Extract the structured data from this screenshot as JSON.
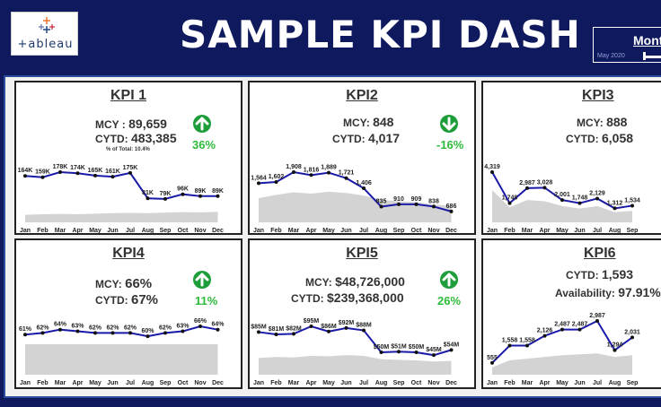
{
  "header": {
    "logo_text": "+ableau",
    "title": "SAMPLE KPI DASH",
    "month_label": "Mont",
    "month_date": "May 2020"
  },
  "months": [
    "Jan",
    "Feb",
    "Mar",
    "Apr",
    "May",
    "Jun",
    "Jul",
    "Aug",
    "Sep",
    "Oct",
    "Nov",
    "Dec"
  ],
  "colors": {
    "navy": "#0f1a5e",
    "line": "#1a1aa8",
    "area": "#d3d3d3",
    "green": "#1e9e3a",
    "green_text": "#2dbb3a"
  },
  "kpis": [
    {
      "title": "KPI 1",
      "mcy_label": "MCY : ",
      "mcy_value": "89,659",
      "cytd_label": "CYTD: ",
      "cytd_value": "483,385",
      "note": "% of Total: 10.4%",
      "pct": "36%",
      "direction": "up",
      "values": [
        164,
        159,
        178,
        174,
        165,
        161,
        175,
        81,
        79,
        96,
        89,
        89
      ],
      "labels": [
        "164K",
        "159K",
        "178K",
        "174K",
        "165K",
        "161K",
        "175K",
        "81K",
        "79K",
        "96K",
        "89K",
        "89K"
      ],
      "area": [
        20,
        22,
        23,
        22,
        24,
        26,
        27,
        26,
        28,
        30,
        29,
        31
      ]
    },
    {
      "title": "KPI2",
      "mcy_label": "MCY: ",
      "mcy_value": "848",
      "cytd_label": "CYTD: ",
      "cytd_value": "4,017",
      "pct": "-16%",
      "direction": "down",
      "values": [
        1564,
        1602,
        1908,
        1816,
        1889,
        1721,
        1406,
        835,
        910,
        909,
        838,
        686
      ],
      "labels": [
        "1,564",
        "1,602",
        "1,908",
        "1,816",
        "1,889",
        "1,721",
        "1,406",
        "835",
        "910",
        "909",
        "838",
        "686"
      ],
      "area": [
        1100,
        1200,
        1280,
        1240,
        1300,
        1260,
        1180,
        1050,
        1000,
        980,
        900,
        860
      ]
    },
    {
      "title": "KPI3",
      "mcy_label": "MCY: ",
      "mcy_value": "888",
      "cytd_label": "CYTD: ",
      "cytd_value": "6,058",
      "values": [
        4319,
        1748,
        2987,
        3028,
        2001,
        1748,
        2129,
        1312,
        1534
      ],
      "labels": [
        "4,319",
        "1,748",
        "2,987",
        "3,028",
        "2,001",
        "1,748",
        "2,129",
        "1,312",
        "1,534"
      ],
      "area": [
        3200,
        1400,
        2000,
        1900,
        1500,
        1300,
        1500,
        1000,
        1100
      ]
    },
    {
      "title": "KPI4",
      "mcy_label": "MCY: ",
      "mcy_value": "66%",
      "cytd_label": "CYTD: ",
      "cytd_value": "67%",
      "pct": "11%",
      "direction": "up",
      "values": [
        61,
        62,
        64,
        63,
        62,
        62,
        62,
        60,
        62,
        63,
        66,
        64
      ],
      "labels": [
        "61%",
        "62%",
        "64%",
        "63%",
        "62%",
        "62%",
        "62%",
        "60%",
        "62%",
        "63%",
        "66%",
        "64%"
      ],
      "area": [
        60,
        60,
        60,
        60,
        60,
        60,
        60,
        60,
        60,
        60,
        60,
        60
      ]
    },
    {
      "title": "KPI5",
      "mcy_label": "MCY: ",
      "mcy_value": "$48,726,000",
      "cytd_label": "CYTD: ",
      "cytd_value": "$239,368,000",
      "pct": "26%",
      "direction": "up",
      "values": [
        85,
        81,
        82,
        95,
        86,
        92,
        88,
        50,
        51,
        50,
        45,
        54
      ],
      "labels": [
        "$85M",
        "$81M",
        "$82M",
        "$95M",
        "$86M",
        "$92M",
        "$88M",
        "$50M",
        "$51M",
        "$50M",
        "$45M",
        "$54M"
      ],
      "area": [
        40,
        42,
        41,
        44,
        43,
        45,
        44,
        38,
        37,
        36,
        34,
        35
      ]
    },
    {
      "title": "KPI6",
      "cytd_label": "CYTD: ",
      "cytd_value": "1,593",
      "avail_label": "Availability: ",
      "avail_value": "97.91%",
      "values": [
        555,
        1558,
        1558,
        2126,
        2487,
        2487,
        2987,
        1294,
        2031
      ],
      "labels": [
        "555",
        "1,558",
        "1,558",
        "2,126",
        "2,487",
        "2,487",
        "2,987",
        "1,294",
        "2,031"
      ],
      "area": [
        300,
        700,
        800,
        900,
        1000,
        1050,
        1100,
        900,
        1000
      ]
    }
  ]
}
